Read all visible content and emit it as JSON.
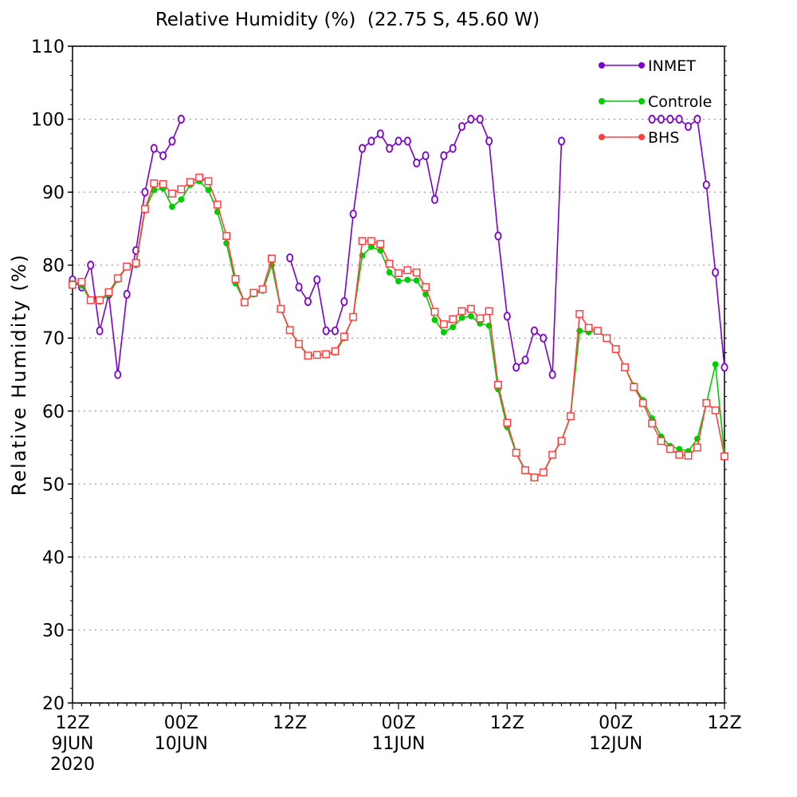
{
  "chart_data": {
    "type": "line",
    "title": "Relative Humidity (%)  (22.75 S, 45.60 W)",
    "ylabel": "Relative Humidity (%)",
    "xlabel": "",
    "ylim": [
      20,
      110
    ],
    "xlim_hours": [
      0,
      72
    ],
    "y_ticks": [
      20,
      30,
      40,
      50,
      60,
      70,
      80,
      90,
      100,
      110
    ],
    "x_ticks": [
      {
        "hour": 0,
        "lines": [
          "12Z",
          "9JUN",
          "2020"
        ]
      },
      {
        "hour": 12,
        "lines": [
          "00Z",
          "10JUN"
        ]
      },
      {
        "hour": 24,
        "lines": [
          "12Z"
        ]
      },
      {
        "hour": 36,
        "lines": [
          "00Z",
          "11JUN"
        ]
      },
      {
        "hour": 48,
        "lines": [
          "12Z"
        ]
      },
      {
        "hour": 60,
        "lines": [
          "00Z",
          "12JUN"
        ]
      },
      {
        "hour": 72,
        "lines": [
          "12Z"
        ]
      }
    ],
    "grid": "horizontal dotted",
    "legend_position": "top-right",
    "series": [
      {
        "name": "INMET",
        "color": "#7a00cc",
        "marker": "open-circle",
        "values": [
          78,
          77,
          80,
          71,
          76,
          65,
          76,
          82,
          90,
          96,
          95,
          97,
          100,
          null,
          null,
          null,
          null,
          null,
          null,
          null,
          null,
          null,
          null,
          null,
          81,
          77,
          75,
          78,
          71,
          71,
          75,
          87,
          96,
          97,
          98,
          96,
          97,
          97,
          94,
          95,
          89,
          95,
          96,
          99,
          100,
          100,
          97,
          84,
          73,
          66,
          67,
          71,
          70,
          65,
          97,
          null,
          null,
          null,
          null,
          null,
          null,
          null,
          null,
          null,
          100,
          100,
          100,
          100,
          99,
          100,
          91,
          79,
          66
        ]
      },
      {
        "name": "Controle",
        "color": "#00cc00",
        "marker": "filled-circle",
        "values": [
          77.5,
          77.2,
          75.2,
          75.0,
          76.0,
          78.0,
          79.8,
          80.0,
          87.5,
          90.3,
          90.5,
          88.0,
          89.0,
          91.0,
          91.5,
          90.3,
          87.3,
          83.0,
          77.5,
          75.0,
          76.0,
          76.5,
          80.0,
          74.0,
          71.0,
          69.2,
          67.7,
          67.7,
          67.8,
          68.0,
          70.0,
          73.0,
          81.3,
          82.5,
          82.0,
          79.0,
          77.8,
          78.0,
          77.9,
          76.0,
          72.5,
          70.8,
          71.5,
          72.8,
          73.0,
          72.0,
          71.7,
          63.0,
          57.8,
          54.2,
          51.8,
          51.0,
          51.5,
          54.0,
          56.0,
          59.3,
          71.0,
          70.8,
          71.0,
          70.0,
          68.5,
          66.0,
          63.5,
          61.5,
          59.0,
          56.5,
          55.2,
          54.8,
          54.5,
          56.2,
          61.0,
          66.4,
          54.0
        ]
      },
      {
        "name": "BHS",
        "color": "#ff4040",
        "marker": "open-square",
        "values": [
          77.3,
          77.7,
          75.2,
          75.2,
          76.3,
          78.2,
          79.8,
          80.3,
          87.7,
          91.2,
          91.1,
          89.8,
          90.4,
          91.4,
          92.0,
          91.5,
          88.3,
          84.0,
          78.1,
          74.9,
          76.2,
          76.7,
          80.9,
          74.0,
          71.1,
          69.2,
          67.6,
          67.7,
          67.8,
          68.2,
          70.2,
          72.9,
          83.3,
          83.3,
          82.9,
          80.2,
          78.9,
          79.3,
          79.0,
          77.0,
          73.6,
          71.9,
          72.6,
          73.7,
          74.0,
          72.7,
          73.7,
          63.6,
          58.4,
          54.3,
          51.9,
          50.9,
          51.6,
          54.0,
          55.9,
          59.3,
          73.3,
          71.4,
          71.0,
          70.0,
          68.5,
          66.0,
          63.3,
          61.1,
          58.3,
          55.9,
          54.8,
          54.0,
          53.9,
          55.0,
          61.1,
          60.1,
          53.8
        ]
      }
    ]
  }
}
